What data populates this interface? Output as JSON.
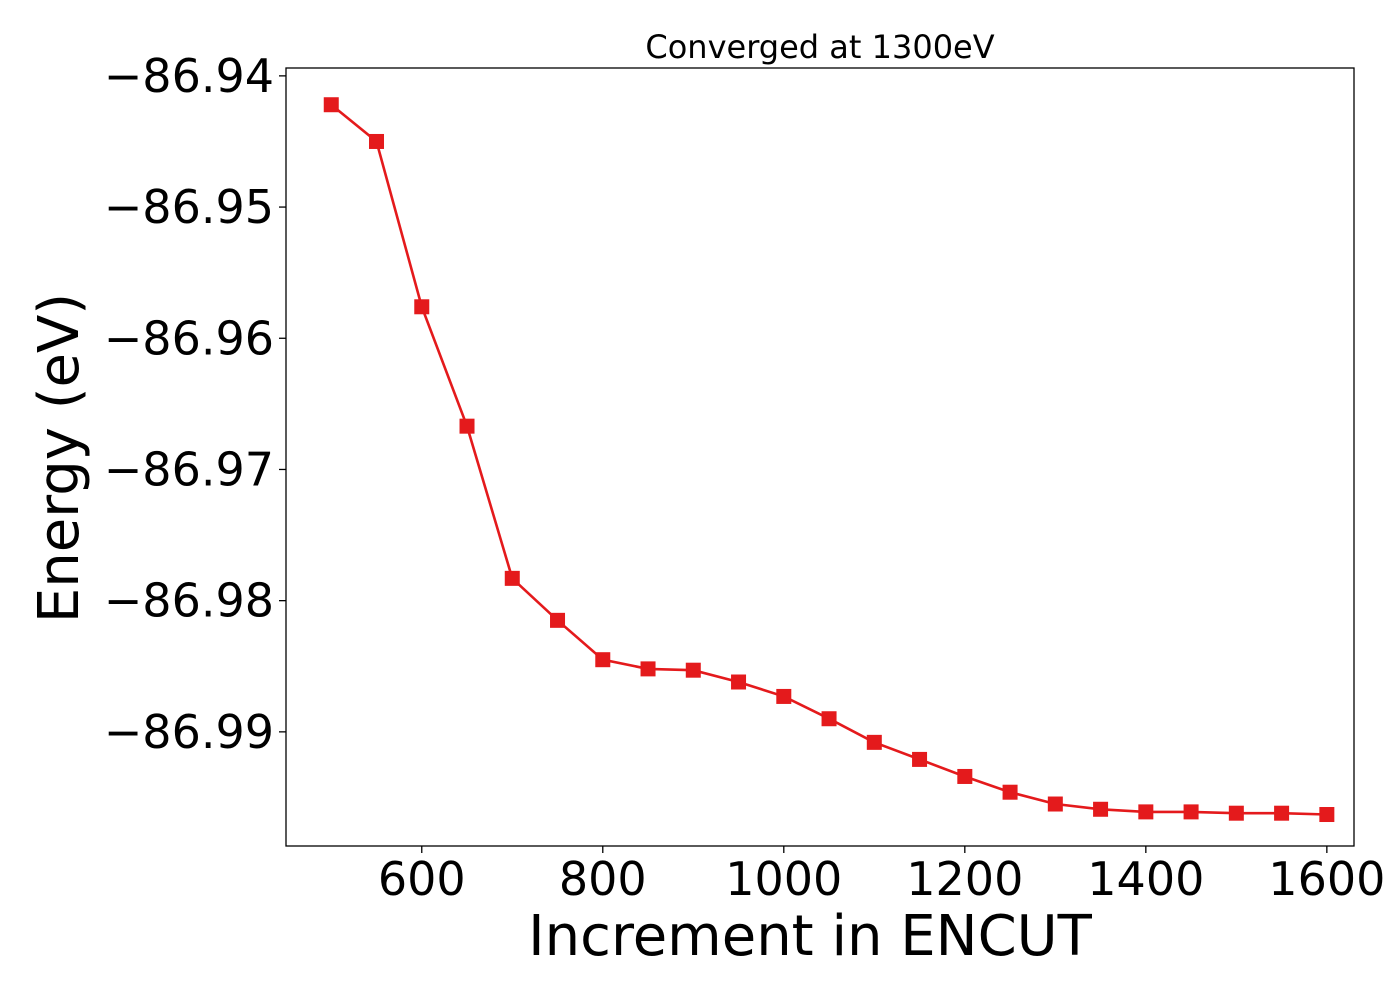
{
  "chart_data": {
    "type": "line",
    "title": "Converged at 1300eV",
    "xlabel": "Increment in ENCUT",
    "ylabel": "Energy (eV)",
    "xlim": [
      450,
      1630
    ],
    "ylim": [
      -86.9987,
      -86.9394
    ],
    "xticks": [
      600,
      800,
      1000,
      1200,
      1400,
      1600
    ],
    "yticks": [
      -86.94,
      -86.95,
      -86.96,
      -86.97,
      -86.98,
      -86.99
    ],
    "ytick_labels": [
      "−86.94",
      "−86.95",
      "−86.96",
      "−86.97",
      "−86.98",
      "−86.99"
    ],
    "grid": false,
    "color": "#e41a1c",
    "marker": "square",
    "series": [
      {
        "x": [
          500,
          550,
          600,
          650,
          700,
          750,
          800,
          850,
          900,
          950,
          1000,
          1050,
          1100,
          1150,
          1200,
          1250,
          1300,
          1350,
          1400,
          1450,
          1500,
          1550,
          1600
        ],
        "y": [
          -86.9422,
          -86.945,
          -86.9576,
          -86.9667,
          -86.9783,
          -86.9815,
          -86.9845,
          -86.9852,
          -86.9853,
          -86.9862,
          -86.9873,
          -86.989,
          -86.9908,
          -86.9921,
          -86.9934,
          -86.9946,
          -86.9955,
          -86.9959,
          -86.9961,
          -86.9961,
          -86.9962,
          -86.9962,
          -86.9963
        ]
      }
    ]
  }
}
